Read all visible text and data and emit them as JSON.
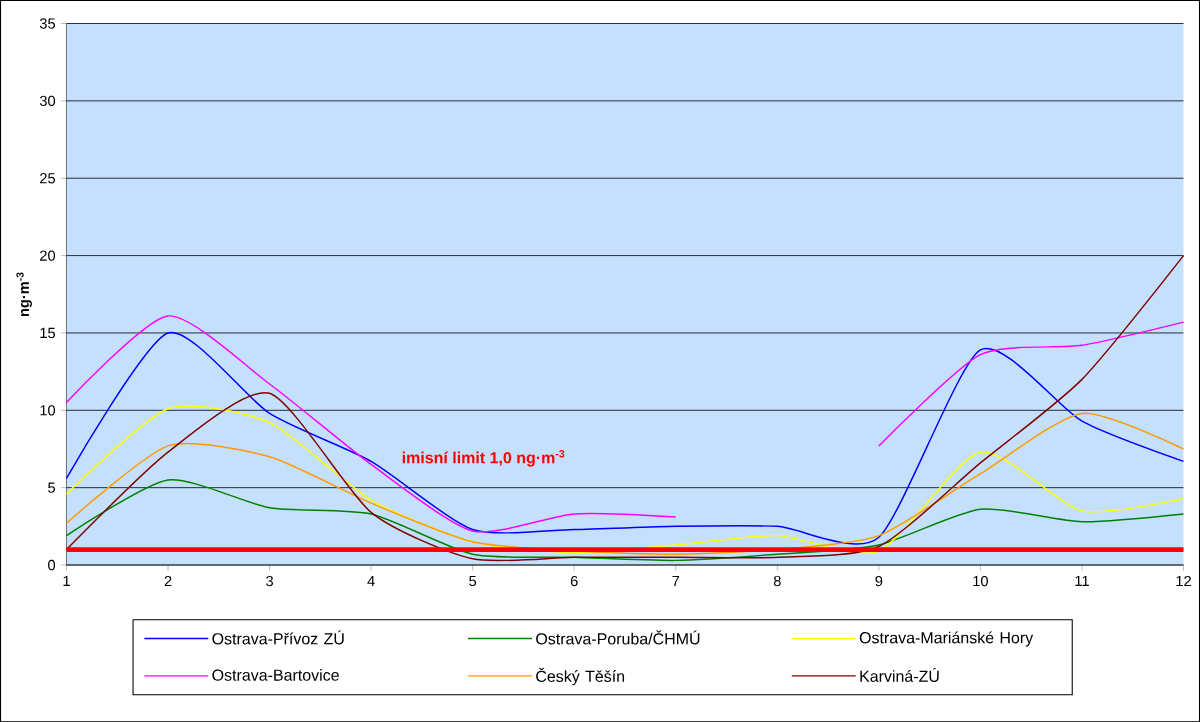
{
  "chart_data": {
    "type": "line",
    "ylabel": "ng·m$^{-3}$",
    "x": [
      1,
      2,
      3,
      4,
      5,
      6,
      7,
      8,
      9,
      10,
      11,
      12
    ],
    "xlim": [
      1,
      12
    ],
    "xticks": [
      1,
      2,
      3,
      4,
      5,
      6,
      7,
      8,
      9,
      10,
      11,
      12
    ],
    "ylim": [
      0,
      35
    ],
    "yticks": [
      0,
      5,
      10,
      15,
      20,
      25,
      30,
      35
    ],
    "grid": "y",
    "legend": "bottom",
    "ref_lines": [
      {
        "axis": "y",
        "value": 1,
        "label": "imisní limit 1,0  ng·m$^{-3}$",
        "color": "#ff0000"
      }
    ],
    "series": [
      {
        "name": "Ostrava-Přívoz ZÚ",
        "color": "#0000ff",
        "values": [
          5.6,
          15.0,
          9.8,
          6.7,
          2.3,
          2.3,
          2.5,
          2.5,
          1.8,
          13.9,
          9.3,
          6.7
        ]
      },
      {
        "name": "Ostrava-Poruba/ČHMÚ",
        "color": "#008000",
        "values": [
          1.9,
          5.5,
          3.7,
          3.3,
          0.7,
          0.5,
          0.3,
          0.7,
          1.3,
          3.6,
          2.8,
          3.3
        ]
      },
      {
        "name": "Ostrava-Mariánské Hory",
        "color": "#ffff00",
        "values": [
          4.6,
          10.1,
          9.2,
          4.2,
          1.5,
          0.8,
          1.3,
          1.9,
          0.9,
          7.3,
          3.5,
          4.3
        ]
      },
      {
        "name": "Ostrava-Bartovice",
        "color": "#ff00ff",
        "values": [
          10.5,
          16.1,
          11.7,
          6.5,
          2.2,
          3.3,
          3.1,
          null,
          7.7,
          13.6,
          14.2,
          15.7
        ]
      },
      {
        "name": "Český Těšín",
        "color": "#ff9900",
        "values": [
          2.7,
          7.7,
          7.0,
          4.0,
          1.5,
          0.9,
          0.7,
          1.0,
          1.9,
          5.9,
          9.8,
          7.5
        ]
      },
      {
        "name": "Karviná-ZÚ",
        "color": "#800000",
        "values": [
          1.0,
          7.3,
          11.1,
          3.4,
          0.4,
          0.5,
          0.5,
          0.5,
          1.2,
          6.6,
          12.0,
          20.0
        ]
      }
    ]
  }
}
